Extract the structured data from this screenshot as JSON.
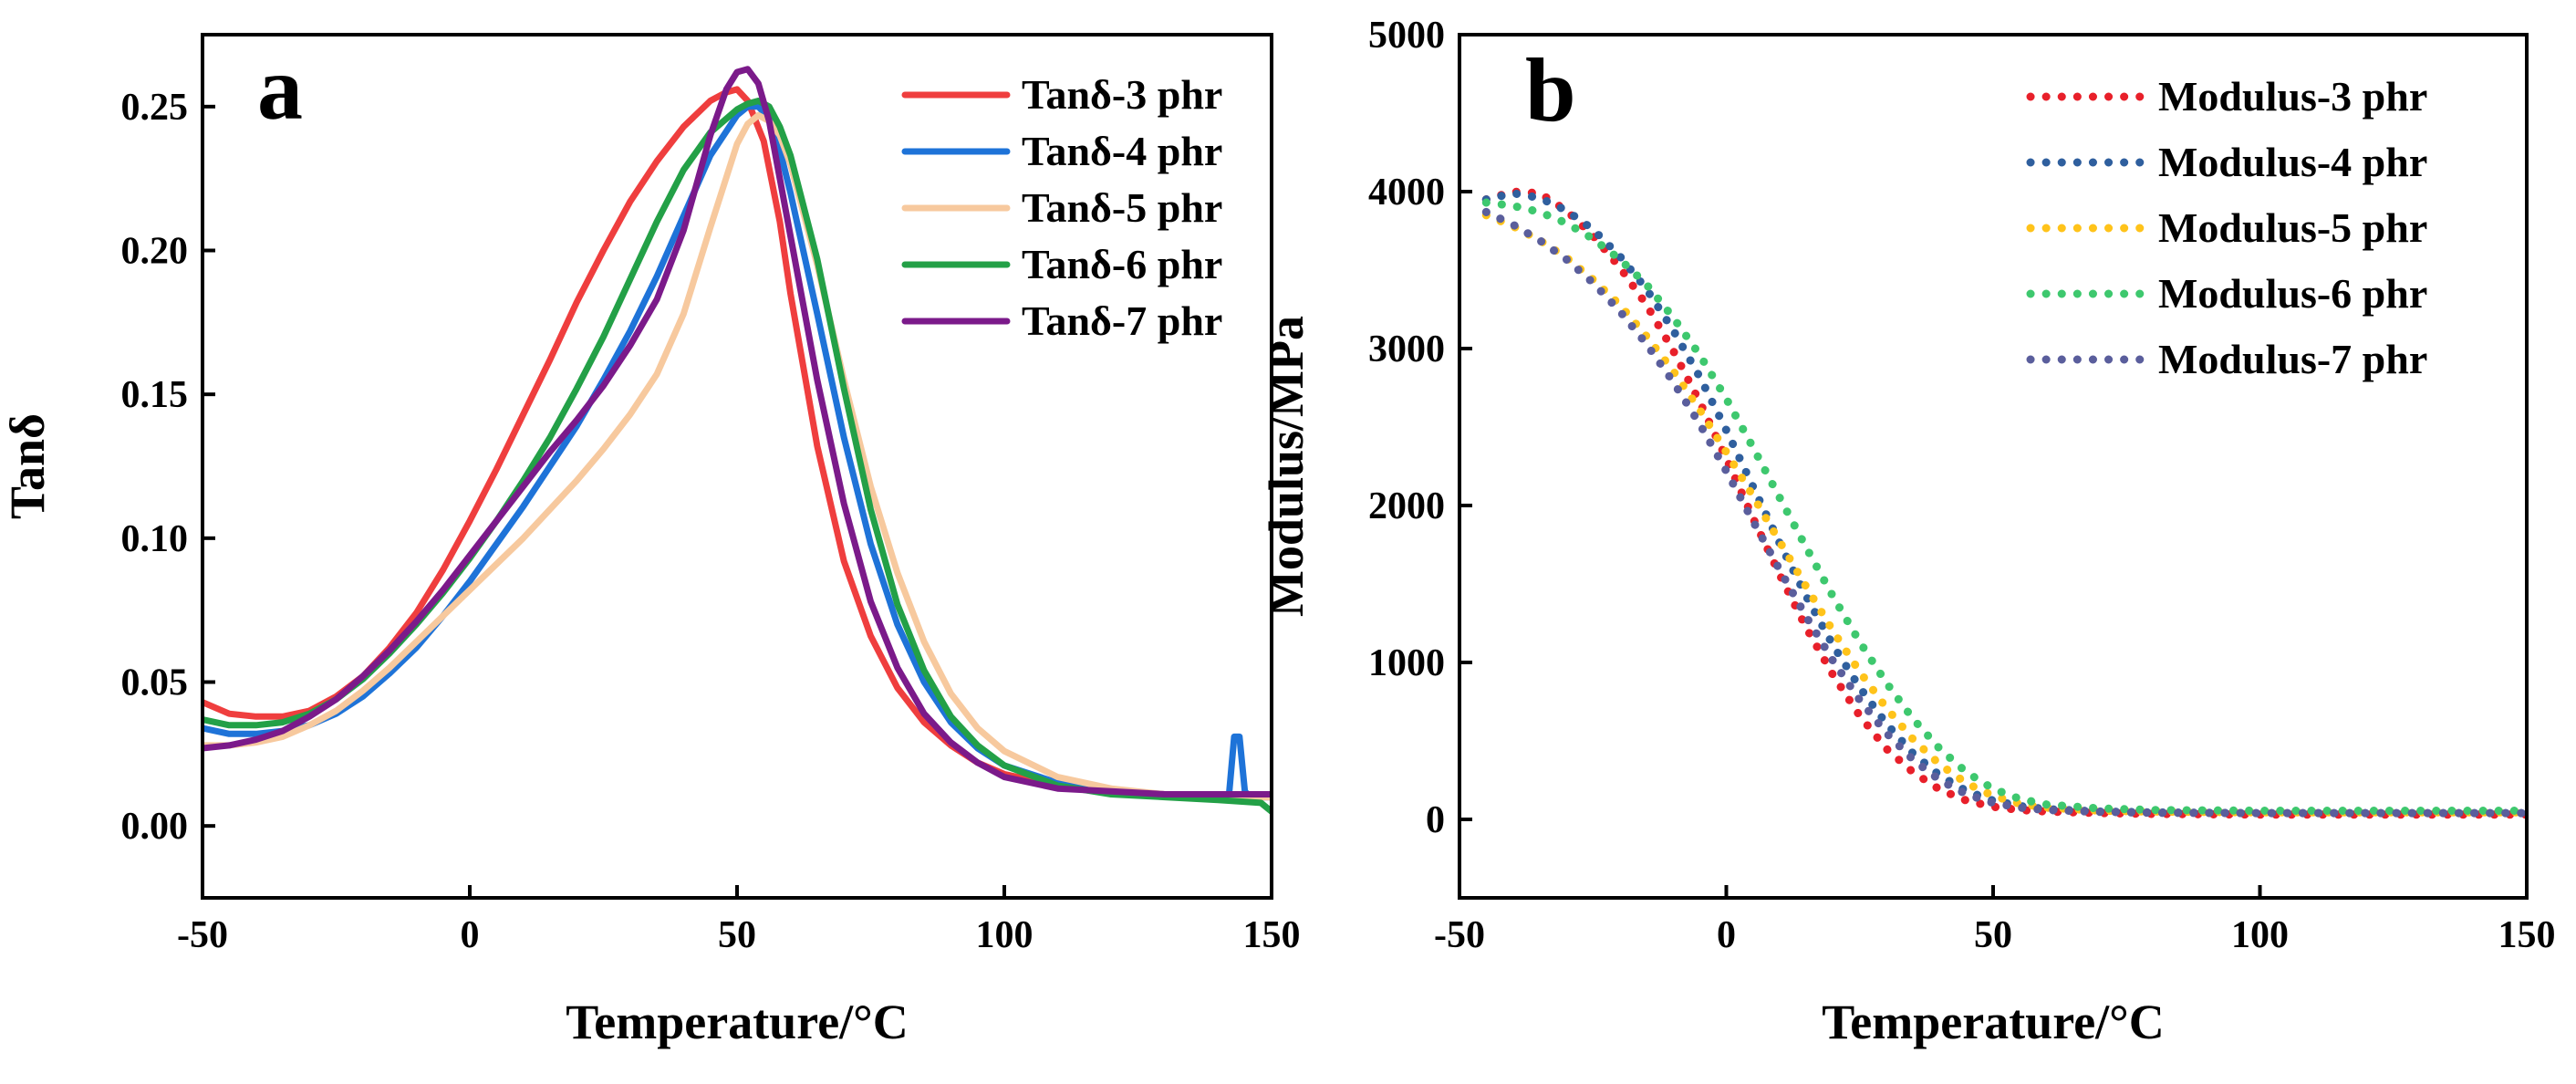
{
  "chart_data": [
    {
      "type": "line",
      "panel_label": "a",
      "title": "",
      "xlabel": "Temperature/°C",
      "ylabel": "Tanδ",
      "xlim": [
        -50,
        150
      ],
      "ylim": [
        -0.025,
        0.275
      ],
      "xticks": [
        "-50",
        "0",
        "50",
        "100",
        "150"
      ],
      "yticks": [
        "0.00",
        "0.05",
        "0.10",
        "0.15",
        "0.20",
        "0.25"
      ],
      "legend_position": "top-right",
      "grid": false,
      "series": [
        {
          "name": "Tanδ-3 phr",
          "color": "#ef3e3e",
          "style": "solid",
          "x": [
            -50,
            -45,
            -40,
            -35,
            -30,
            -25,
            -20,
            -15,
            -10,
            -5,
            0,
            5,
            10,
            15,
            20,
            25,
            30,
            35,
            40,
            45,
            48,
            50,
            52,
            55,
            58,
            60,
            65,
            70,
            75,
            80,
            85,
            90,
            95,
            100,
            110,
            120,
            130,
            140,
            150
          ],
          "y": [
            0.043,
            0.039,
            0.038,
            0.038,
            0.04,
            0.045,
            0.052,
            0.062,
            0.074,
            0.089,
            0.106,
            0.124,
            0.143,
            0.162,
            0.182,
            0.2,
            0.217,
            0.231,
            0.243,
            0.252,
            0.255,
            0.256,
            0.252,
            0.238,
            0.21,
            0.185,
            0.132,
            0.092,
            0.066,
            0.048,
            0.036,
            0.028,
            0.022,
            0.018,
            0.014,
            0.012,
            0.011,
            0.01,
            0.01
          ]
        },
        {
          "name": "Tanδ-4 phr",
          "color": "#1e73d8",
          "style": "solid",
          "x": [
            -50,
            -45,
            -40,
            -35,
            -30,
            -25,
            -20,
            -15,
            -10,
            -5,
            0,
            5,
            10,
            15,
            20,
            25,
            30,
            35,
            40,
            45,
            50,
            52,
            54,
            56,
            58,
            60,
            65,
            70,
            75,
            80,
            85,
            90,
            95,
            100,
            110,
            120,
            130,
            140,
            142,
            143,
            144,
            145,
            146,
            148,
            150
          ],
          "y": [
            0.034,
            0.032,
            0.032,
            0.033,
            0.035,
            0.039,
            0.045,
            0.053,
            0.062,
            0.073,
            0.085,
            0.098,
            0.111,
            0.125,
            0.139,
            0.155,
            0.172,
            0.191,
            0.212,
            0.233,
            0.247,
            0.25,
            0.25,
            0.246,
            0.235,
            0.22,
            0.178,
            0.135,
            0.098,
            0.07,
            0.05,
            0.036,
            0.027,
            0.021,
            0.015,
            0.012,
            0.011,
            0.01,
            0.01,
            0.031,
            0.031,
            0.012,
            0.01,
            0.01,
            0.01
          ]
        },
        {
          "name": "Tanδ-5 phr",
          "color": "#f7c99e",
          "style": "solid",
          "x": [
            -50,
            -45,
            -40,
            -35,
            -30,
            -25,
            -20,
            -15,
            -10,
            -5,
            0,
            5,
            10,
            15,
            20,
            25,
            30,
            35,
            40,
            45,
            50,
            52,
            54,
            56,
            58,
            60,
            65,
            70,
            75,
            80,
            85,
            90,
            95,
            100,
            110,
            120,
            130,
            140,
            150
          ],
          "y": [
            0.028,
            0.028,
            0.029,
            0.031,
            0.035,
            0.04,
            0.047,
            0.055,
            0.064,
            0.073,
            0.082,
            0.091,
            0.1,
            0.11,
            0.12,
            0.131,
            0.143,
            0.157,
            0.178,
            0.208,
            0.237,
            0.244,
            0.247,
            0.245,
            0.24,
            0.23,
            0.195,
            0.155,
            0.118,
            0.088,
            0.064,
            0.046,
            0.034,
            0.026,
            0.017,
            0.013,
            0.011,
            0.01,
            0.01
          ]
        },
        {
          "name": "Tanδ-6 phr",
          "color": "#23a047",
          "style": "solid",
          "x": [
            -50,
            -45,
            -40,
            -35,
            -30,
            -25,
            -20,
            -15,
            -10,
            -5,
            0,
            5,
            10,
            15,
            20,
            25,
            30,
            35,
            40,
            45,
            50,
            52,
            54,
            56,
            58,
            60,
            65,
            70,
            75,
            80,
            85,
            90,
            95,
            100,
            110,
            120,
            130,
            140,
            148,
            150
          ],
          "y": [
            0.037,
            0.035,
            0.035,
            0.036,
            0.039,
            0.044,
            0.051,
            0.06,
            0.07,
            0.081,
            0.093,
            0.106,
            0.12,
            0.135,
            0.152,
            0.17,
            0.19,
            0.21,
            0.228,
            0.241,
            0.249,
            0.251,
            0.252,
            0.25,
            0.243,
            0.233,
            0.197,
            0.152,
            0.11,
            0.077,
            0.054,
            0.038,
            0.028,
            0.021,
            0.014,
            0.011,
            0.01,
            0.009,
            0.008,
            0.005
          ]
        },
        {
          "name": "Tanδ-7 phr",
          "color": "#7b1a8a",
          "style": "solid",
          "x": [
            -50,
            -45,
            -40,
            -35,
            -30,
            -25,
            -20,
            -15,
            -10,
            -5,
            0,
            5,
            10,
            15,
            20,
            25,
            30,
            35,
            40,
            45,
            48,
            50,
            52,
            54,
            56,
            58,
            60,
            65,
            70,
            75,
            80,
            85,
            90,
            95,
            100,
            110,
            120,
            130,
            140,
            150
          ],
          "y": [
            0.027,
            0.028,
            0.03,
            0.033,
            0.038,
            0.044,
            0.052,
            0.061,
            0.071,
            0.082,
            0.094,
            0.106,
            0.118,
            0.13,
            0.141,
            0.153,
            0.167,
            0.183,
            0.207,
            0.24,
            0.256,
            0.262,
            0.263,
            0.258,
            0.245,
            0.225,
            0.205,
            0.155,
            0.112,
            0.078,
            0.055,
            0.039,
            0.029,
            0.022,
            0.017,
            0.013,
            0.012,
            0.011,
            0.011,
            0.011
          ]
        }
      ]
    },
    {
      "type": "line",
      "panel_label": "b",
      "title": "",
      "xlabel": "Temperature/°C",
      "ylabel": "Modulus/MPa",
      "xlim": [
        -50,
        150
      ],
      "ylim": [
        -500,
        5000
      ],
      "xticks": [
        "-50",
        "0",
        "50",
        "100",
        "150"
      ],
      "yticks": [
        "0",
        "1000",
        "2000",
        "3000",
        "4000",
        "5000"
      ],
      "legend_position": "top-right",
      "grid": false,
      "series": [
        {
          "name": "Modulus-3 phr",
          "color": "#e8202a",
          "style": "dotted",
          "x": [
            -45,
            -40,
            -35,
            -30,
            -25,
            -20,
            -15,
            -10,
            -5,
            0,
            5,
            10,
            15,
            20,
            25,
            30,
            35,
            40,
            45,
            50,
            55,
            60,
            70,
            80,
            100,
            125,
            150
          ],
          "y": [
            3950,
            4000,
            3990,
            3880,
            3720,
            3520,
            3280,
            2990,
            2660,
            2300,
            1920,
            1560,
            1220,
            920,
            660,
            450,
            300,
            190,
            120,
            80,
            60,
            50,
            40,
            35,
            30,
            30,
            30
          ]
        },
        {
          "name": "Modulus-4 phr",
          "color": "#2f5f9e",
          "style": "dotted",
          "x": [
            -45,
            -40,
            -35,
            -30,
            -25,
            -20,
            -15,
            -10,
            -5,
            0,
            5,
            10,
            15,
            20,
            25,
            30,
            35,
            40,
            45,
            50,
            55,
            60,
            70,
            80,
            100,
            125,
            150
          ],
          "y": [
            3950,
            3990,
            3960,
            3880,
            3760,
            3590,
            3380,
            3120,
            2820,
            2480,
            2120,
            1760,
            1420,
            1110,
            840,
            610,
            420,
            280,
            180,
            120,
            85,
            65,
            50,
            45,
            40,
            40,
            40
          ]
        },
        {
          "name": "Modulus-5 phr",
          "color": "#ffc31a",
          "style": "dotted",
          "x": [
            -45,
            -40,
            -35,
            -30,
            -25,
            -20,
            -15,
            -10,
            -5,
            0,
            5,
            10,
            15,
            20,
            25,
            30,
            35,
            40,
            45,
            50,
            55,
            60,
            70,
            80,
            100,
            125,
            150
          ],
          "y": [
            3850,
            3780,
            3690,
            3580,
            3440,
            3280,
            3080,
            2860,
            2610,
            2340,
            2060,
            1770,
            1480,
            1200,
            940,
            710,
            510,
            350,
            230,
            150,
            100,
            75,
            55,
            50,
            45,
            45,
            45
          ]
        },
        {
          "name": "Modulus-6 phr",
          "color": "#3ec86e",
          "style": "dotted",
          "x": [
            -45,
            -40,
            -35,
            -30,
            -25,
            -20,
            -15,
            -10,
            -5,
            0,
            5,
            10,
            15,
            20,
            25,
            30,
            35,
            40,
            45,
            50,
            55,
            60,
            70,
            80,
            100,
            125,
            150
          ],
          "y": [
            3930,
            3910,
            3870,
            3800,
            3700,
            3570,
            3410,
            3200,
            2960,
            2680,
            2370,
            2050,
            1730,
            1420,
            1130,
            870,
            640,
            450,
            300,
            195,
            130,
            95,
            70,
            60,
            55,
            55,
            55
          ]
        },
        {
          "name": "Modulus-7 phr",
          "color": "#5a5e9c",
          "style": "dotted",
          "x": [
            -45,
            -40,
            -35,
            -30,
            -25,
            -20,
            -15,
            -10,
            -5,
            0,
            5,
            10,
            15,
            20,
            25,
            30,
            35,
            40,
            45,
            50,
            55,
            60,
            70,
            80,
            100,
            125,
            150
          ],
          "y": [
            3870,
            3790,
            3690,
            3570,
            3420,
            3240,
            3030,
            2790,
            2520,
            2220,
            1900,
            1590,
            1290,
            1010,
            760,
            550,
            380,
            250,
            160,
            105,
            75,
            60,
            48,
            42,
            40,
            40,
            40
          ]
        }
      ]
    }
  ]
}
